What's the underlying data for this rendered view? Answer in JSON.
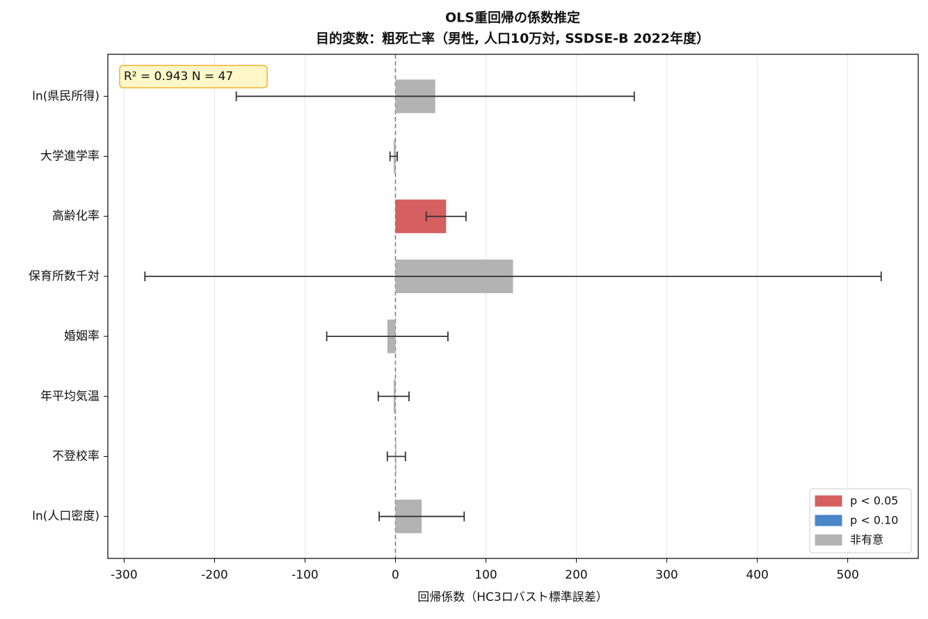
{
  "chart_data": {
    "type": "barh",
    "title": "OLS重回帰の係数推定",
    "subtitle": "目的変数：粗死亡率（男性, 人口10万対, SSDSE-B 2022年度）",
    "x_label": "回帰係数（HC3ロバスト標準誤差）",
    "annotation": "R² = 0.943  N = 47",
    "categories": [
      "ln(県民所得)",
      "大学進学率",
      "高齢化率",
      "保育所数千対",
      "婚姻率",
      "年平均気温",
      "不登校率",
      "ln(人口密度)"
    ],
    "values": [
      44,
      -2,
      56,
      130,
      -9,
      -2,
      1,
      29
    ],
    "errors": [
      220,
      4,
      22,
      407,
      67,
      17,
      10,
      47
    ],
    "colors": [
      "#b3b3b3",
      "#b3b3b3",
      "#d65f5f",
      "#b3b3b3",
      "#b3b3b3",
      "#b3b3b3",
      "#b3b3b3",
      "#b3b3b3"
    ],
    "legend": [
      {
        "name": "p < 0.05",
        "color": "#d65f5f"
      },
      {
        "name": "p < 0.10",
        "color": "#4a86c8"
      },
      {
        "name": "非有意",
        "color": "#b3b3b3"
      }
    ],
    "legend_position": "lower right",
    "xlim": [
      -318,
      578
    ],
    "xticks": [
      -300,
      -200,
      -100,
      0,
      100,
      200,
      300,
      400,
      500
    ],
    "grid": true
  }
}
